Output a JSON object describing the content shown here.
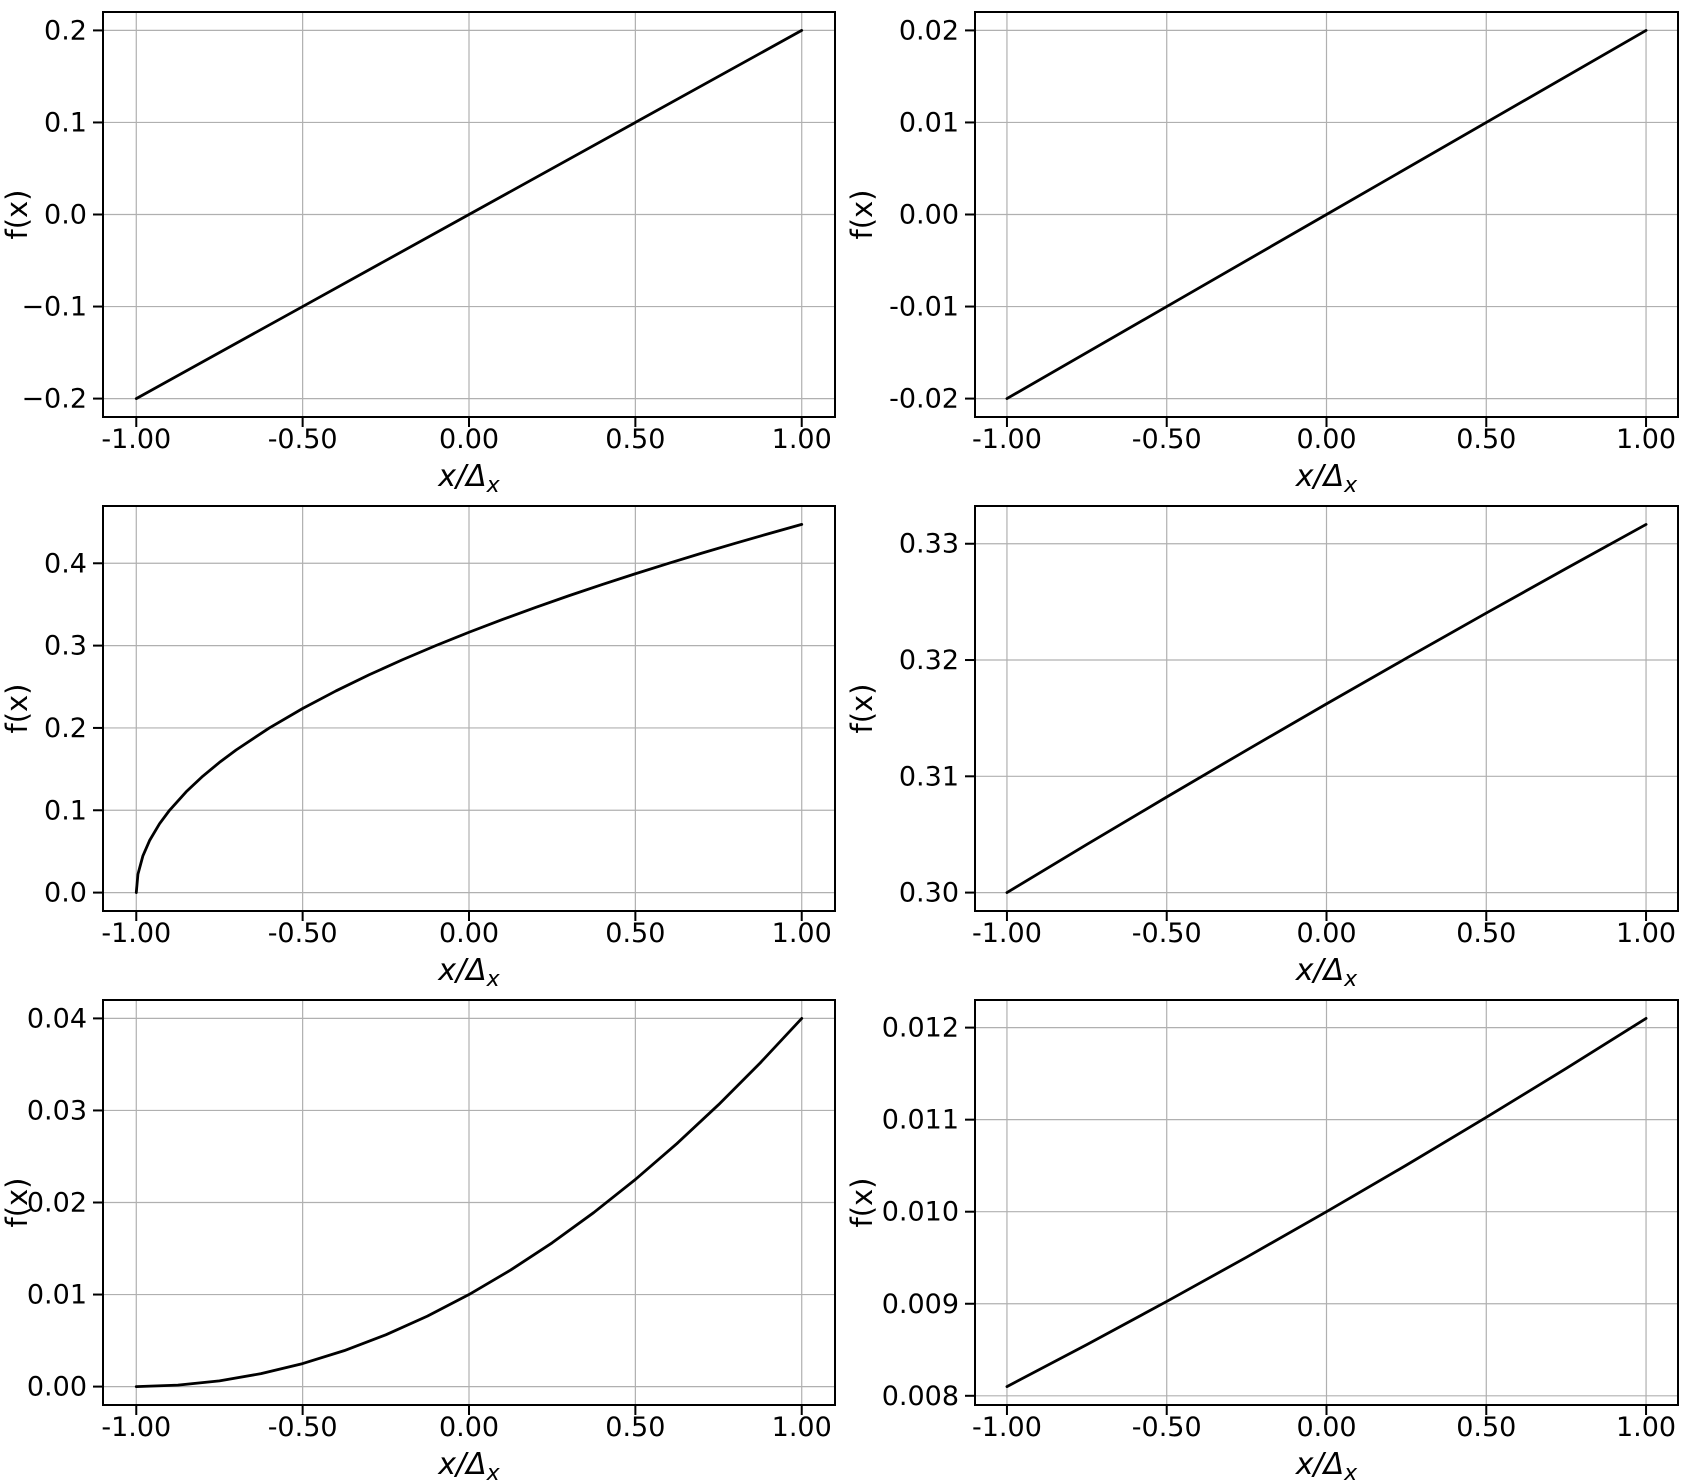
{
  "figure": {
    "background_color": "#ffffff",
    "line_color": "#000000",
    "grid_color": "#b0b0b0",
    "spine_color": "#000000",
    "text_color": "#000000"
  },
  "chart_data": [
    {
      "type": "line",
      "position": {
        "row": 0,
        "col": 0
      },
      "title": "",
      "xlabel": "x/Δₓ",
      "ylabel": "f(x)",
      "xlim": [
        -1.1,
        1.1
      ],
      "ylim": [
        -0.22,
        0.22
      ],
      "grid": true,
      "legend": false,
      "xticks": {
        "values": [
          -1,
          -0.5,
          0,
          0.5,
          1
        ],
        "labels": [
          "-1.00",
          "-0.50",
          "0.00",
          "0.50",
          "1.00"
        ]
      },
      "yticks": {
        "values": [
          -0.2,
          -0.1,
          0,
          0.1,
          0.2
        ],
        "labels": [
          "−0.2",
          "−0.1",
          "0.0",
          "0.1",
          "0.2"
        ]
      },
      "series": [
        {
          "x": [
            -1,
            -0.5,
            0,
            0.5,
            1
          ],
          "y": [
            -0.2,
            -0.1,
            0,
            0.1,
            0.2
          ]
        }
      ]
    },
    {
      "type": "line",
      "position": {
        "row": 0,
        "col": 1
      },
      "title": "",
      "xlabel": "x/Δₓ",
      "ylabel": "f(x)",
      "xlim": [
        -1.1,
        1.1
      ],
      "ylim": [
        -0.022,
        0.022
      ],
      "grid": true,
      "legend": false,
      "xticks": {
        "values": [
          -1,
          -0.5,
          0,
          0.5,
          1
        ],
        "labels": [
          "-1.00",
          "-0.50",
          "0.00",
          "0.50",
          "1.00"
        ]
      },
      "yticks": {
        "values": [
          -0.02,
          -0.01,
          0,
          0.01,
          0.02
        ],
        "labels": [
          "-0.02",
          "-0.01",
          "0.00",
          "0.01",
          "0.02"
        ]
      },
      "series": [
        {
          "x": [
            -1,
            -0.5,
            0,
            0.5,
            1
          ],
          "y": [
            -0.02,
            -0.01,
            0,
            0.01,
            0.02
          ]
        }
      ]
    },
    {
      "type": "line",
      "position": {
        "row": 1,
        "col": 0
      },
      "title": "",
      "xlabel": "x/Δₓ",
      "ylabel": "f(x)",
      "xlim": [
        -1.1,
        1.1
      ],
      "ylim": [
        -0.022361,
        0.469574
      ],
      "grid": true,
      "legend": false,
      "xticks": {
        "values": [
          -1,
          -0.5,
          0,
          0.5,
          1
        ],
        "labels": [
          "-1.00",
          "-0.50",
          "0.00",
          "0.50",
          "1.00"
        ]
      },
      "yticks": {
        "values": [
          0,
          0.1,
          0.2,
          0.3,
          0.4
        ],
        "labels": [
          "0.0",
          "0.1",
          "0.2",
          "0.3",
          "0.4"
        ]
      },
      "series": [
        {
          "x": [
            -1,
            -0.995,
            -0.98,
            -0.96,
            -0.93,
            -0.9,
            -0.85,
            -0.8,
            -0.75,
            -0.7,
            -0.6,
            -0.5,
            -0.4,
            -0.3,
            -0.2,
            -0.1,
            0,
            0.1,
            0.2,
            0.3,
            0.4,
            0.5,
            0.6,
            0.7,
            0.8,
            0.9,
            1
          ],
          "y": [
            0,
            0.022361,
            0.044721,
            0.063246,
            0.083666,
            0.1,
            0.122474,
            0.141421,
            0.158114,
            0.173205,
            0.2,
            0.223607,
            0.244949,
            0.264575,
            0.282843,
            0.3,
            0.316228,
            0.331662,
            0.34641,
            0.360555,
            0.374166,
            0.387298,
            0.4,
            0.412311,
            0.424264,
            0.43589,
            0.447214
          ]
        }
      ]
    },
    {
      "type": "line",
      "position": {
        "row": 1,
        "col": 1
      },
      "title": "",
      "xlabel": "x/Δₓ",
      "ylabel": "f(x)",
      "xlim": [
        -1.1,
        1.1
      ],
      "ylim": [
        0.298417,
        0.333246
      ],
      "grid": true,
      "legend": false,
      "xticks": {
        "values": [
          -1,
          -0.5,
          0,
          0.5,
          1
        ],
        "labels": [
          "-1.00",
          "-0.50",
          "0.00",
          "0.50",
          "1.00"
        ]
      },
      "yticks": {
        "values": [
          0.3,
          0.31,
          0.32,
          0.33
        ],
        "labels": [
          "0.30",
          "0.31",
          "0.32",
          "0.33"
        ]
      },
      "series": [
        {
          "x": [
            -1,
            -0.75,
            -0.5,
            -0.25,
            0,
            0.25,
            0.5,
            0.75,
            1
          ],
          "y": [
            0.3,
            0.304138,
            0.308221,
            0.31225,
            0.316228,
            0.320156,
            0.324037,
            0.327872,
            0.331662
          ]
        }
      ]
    },
    {
      "type": "line",
      "position": {
        "row": 2,
        "col": 0
      },
      "title": "",
      "xlabel": "x/Δₓ",
      "ylabel": "f(x)",
      "xlim": [
        -1.1,
        1.1
      ],
      "ylim": [
        -0.002,
        0.042
      ],
      "grid": true,
      "legend": false,
      "xticks": {
        "values": [
          -1,
          -0.5,
          0,
          0.5,
          1
        ],
        "labels": [
          "-1.00",
          "-0.50",
          "0.00",
          "0.50",
          "1.00"
        ]
      },
      "yticks": {
        "values": [
          0,
          0.01,
          0.02,
          0.03,
          0.04
        ],
        "labels": [
          "0.00",
          "0.01",
          "0.02",
          "0.03",
          "0.04"
        ]
      },
      "series": [
        {
          "x": [
            -1,
            -0.875,
            -0.75,
            -0.625,
            -0.5,
            -0.375,
            -0.25,
            -0.125,
            0,
            0.125,
            0.25,
            0.375,
            0.5,
            0.625,
            0.75,
            0.875,
            1
          ],
          "y": [
            0,
            0.000156,
            0.000625,
            0.001406,
            0.0025,
            0.003906,
            0.005625,
            0.007656,
            0.01,
            0.012656,
            0.015625,
            0.018906,
            0.0225,
            0.026406,
            0.030625,
            0.035156,
            0.04
          ]
        }
      ]
    },
    {
      "type": "line",
      "position": {
        "row": 2,
        "col": 1
      },
      "title": "",
      "xlabel": "x/Δₓ",
      "ylabel": "f(x)",
      "xlim": [
        -1.1,
        1.1
      ],
      "ylim": [
        0.0079,
        0.0123
      ],
      "grid": true,
      "legend": false,
      "xticks": {
        "values": [
          -1,
          -0.5,
          0,
          0.5,
          1
        ],
        "labels": [
          "-1.00",
          "-0.50",
          "0.00",
          "0.50",
          "1.00"
        ]
      },
      "yticks": {
        "values": [
          0.008,
          0.009,
          0.01,
          0.011,
          0.012
        ],
        "labels": [
          "0.008",
          "0.009",
          "0.010",
          "0.011",
          "0.012"
        ]
      },
      "series": [
        {
          "x": [
            -1,
            -0.75,
            -0.5,
            -0.25,
            0,
            0.25,
            0.5,
            0.75,
            1
          ],
          "y": [
            0.0081,
            0.008556,
            0.009025,
            0.009506,
            0.01,
            0.010506,
            0.011025,
            0.011556,
            0.0121
          ]
        }
      ]
    }
  ]
}
